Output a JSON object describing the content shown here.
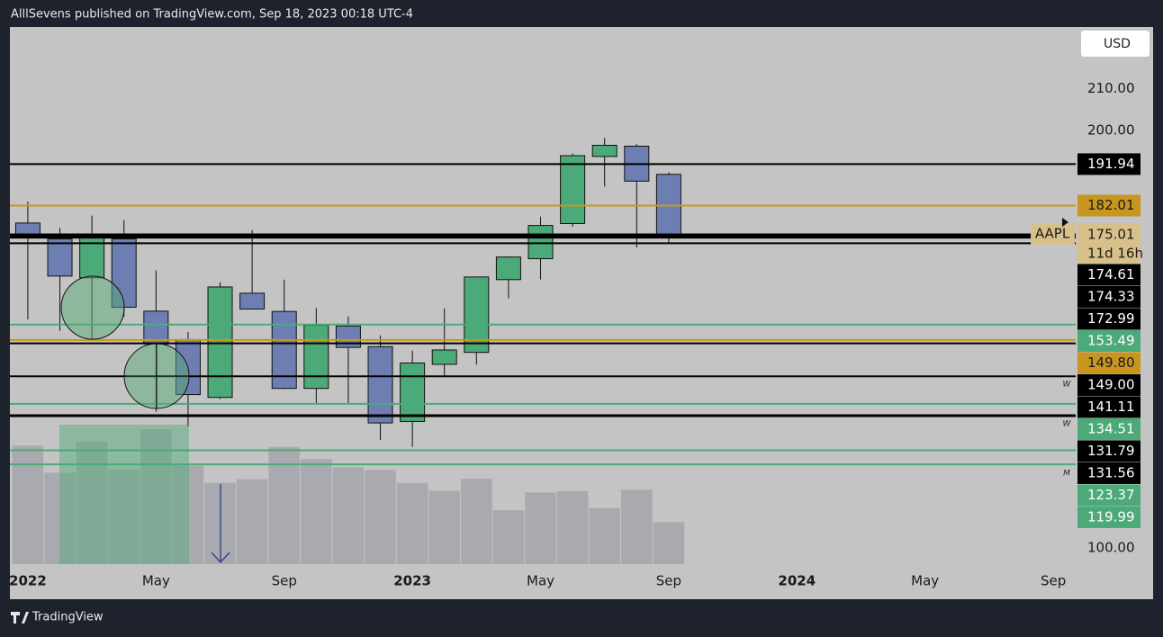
{
  "header": {
    "title": "AlllSevens published on TradingView.com, Sep 18, 2023 00:18 UTC-4"
  },
  "footer": {
    "brand": "TradingView"
  },
  "currency": "USD",
  "chart_data": {
    "type": "candlestick",
    "x": [
      0,
      1,
      2,
      3,
      4,
      5,
      6,
      7,
      8,
      9,
      10,
      11,
      12,
      13,
      14,
      15,
      16,
      17,
      18,
      19,
      20
    ],
    "open": [
      177.83,
      174.01,
      164.7,
      174.03,
      156.71,
      149.9,
      136.04,
      161.01,
      156.64,
      138.21,
      153.16,
      148.21,
      130.28,
      143.97,
      146.83,
      164.27,
      169.28,
      177.7,
      193.78,
      196.24,
      189.49
    ],
    "high": [
      182.94,
      176.65,
      179.61,
      178.49,
      166.48,
      151.74,
      163.63,
      176.15,
      164.26,
      157.5,
      155.45,
      150.92,
      147.23,
      157.38,
      165.0,
      169.85,
      179.35,
      194.48,
      198.23,
      196.73,
      189.98
    ],
    "low": [
      154.7,
      152.0,
      150.1,
      155.38,
      132.61,
      129.04,
      135.66,
      157.14,
      138.0,
      134.37,
      134.38,
      125.87,
      124.17,
      141.32,
      143.9,
      159.78,
      164.31,
      176.93,
      186.6,
      171.96,
      173.18
    ],
    "close": [
      174.78,
      165.12,
      174.61,
      157.65,
      148.84,
      136.72,
      162.51,
      157.22,
      138.2,
      153.34,
      148.03,
      129.93,
      144.29,
      147.41,
      164.9,
      169.68,
      177.25,
      193.97,
      196.45,
      187.87,
      175.01
    ],
    "volume": [
      2108,
      1627,
      2180,
      1688,
      2401,
      1750,
      1447,
      1510,
      2084,
      1869,
      1724,
      1675,
      1443,
      1307,
      1520,
      960,
      1275,
      1298,
      996,
      1323,
      747
    ],
    "up_color": "#4caa78",
    "down_color": "#6d7fb2",
    "volume_color": "#a9aaaf",
    "xlim": [
      -0.56,
      32.7
    ],
    "xticks": [
      {
        "value": 0,
        "label": "2022"
      },
      {
        "value": 4,
        "label": "May"
      },
      {
        "value": 8,
        "label": "Sep"
      },
      {
        "value": 12,
        "label": "2023"
      },
      {
        "value": 16,
        "label": "May"
      },
      {
        "value": 20,
        "label": "Sep"
      },
      {
        "value": 24,
        "label": "2024"
      },
      {
        "value": 28,
        "label": "May"
      },
      {
        "value": 32,
        "label": "Sep"
      }
    ],
    "ylim": [
      96.1,
      224.8
    ],
    "yticks": [
      {
        "value": 210,
        "label": "210.00"
      },
      {
        "value": 200,
        "label": "200.00"
      },
      {
        "value": 100,
        "label": "100.00"
      }
    ],
    "levels": [
      {
        "value": 191.94,
        "label": "191.94",
        "color": "#000000"
      },
      {
        "value": 182.01,
        "label": "182.01",
        "color": "#c8961e"
      },
      {
        "value": 174.61,
        "label": "174.61",
        "color": "#000000"
      },
      {
        "value": 174.33,
        "label": "174.33",
        "color": "#000000"
      },
      {
        "value": 172.99,
        "label": "172.99",
        "color": "#000000"
      },
      {
        "value": 153.49,
        "label": "153.49",
        "color": "#4caa78"
      },
      {
        "value": 149.8,
        "label": "149.80",
        "color": "#c8961e"
      },
      {
        "value": 149.0,
        "label": "149.00",
        "color": "#000000"
      },
      {
        "value": 141.11,
        "label": "141.11",
        "color": "#000000"
      },
      {
        "value": 134.51,
        "label": "134.51",
        "color": "#4caa78"
      },
      {
        "value": 131.79,
        "label": "131.79",
        "color": "#000000"
      },
      {
        "value": 131.56,
        "label": "131.56",
        "color": "#000000"
      },
      {
        "value": 123.37,
        "label": "123.37",
        "color": "#4caa78"
      },
      {
        "value": 119.99,
        "label": "119.99",
        "color": "#4caa78"
      }
    ],
    "last": {
      "symbol": "AAPL",
      "value": 175.01,
      "label": "175.01",
      "countdown": "11d 16h",
      "color": "#d8c08a"
    },
    "markers": [
      "W",
      "W",
      "M"
    ]
  }
}
